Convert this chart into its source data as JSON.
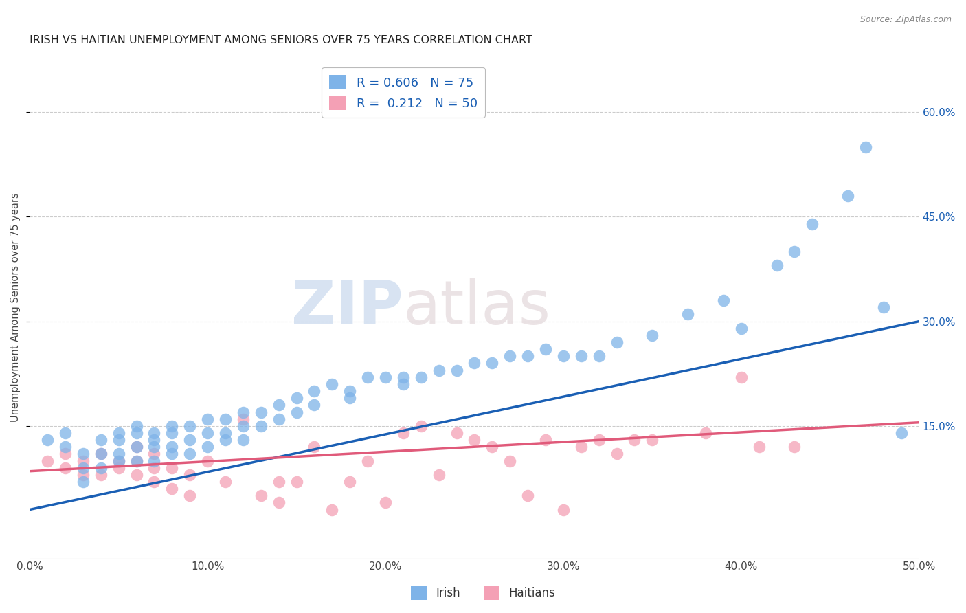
{
  "title": "IRISH VS HAITIAN UNEMPLOYMENT AMONG SENIORS OVER 75 YEARS CORRELATION CHART",
  "source": "Source: ZipAtlas.com",
  "ylabel": "Unemployment Among Seniors over 75 years",
  "xlim": [
    0.0,
    0.5
  ],
  "ylim": [
    -0.04,
    0.68
  ],
  "xticks": [
    0.0,
    0.1,
    0.2,
    0.3,
    0.4,
    0.5
  ],
  "yticks_right": [
    0.15,
    0.3,
    0.45,
    0.6
  ],
  "ytick_labels_right": [
    "15.0%",
    "30.0%",
    "45.0%",
    "60.0%"
  ],
  "xtick_labels": [
    "0.0%",
    "10.0%",
    "20.0%",
    "30.0%",
    "40.0%",
    "50.0%"
  ],
  "grid_color": "#cccccc",
  "background_color": "#ffffff",
  "watermark_zip": "ZIP",
  "watermark_atlas": "atlas",
  "irish_color": "#7eb3e8",
  "haitian_color": "#f4a0b5",
  "irish_line_color": "#1a5fb4",
  "haitian_line_color": "#e05a7a",
  "irish_R": 0.606,
  "irish_N": 75,
  "haitian_R": 0.212,
  "haitian_N": 50,
  "irish_line_x0": 0.0,
  "irish_line_y0": 0.03,
  "irish_line_x1": 0.5,
  "irish_line_y1": 0.3,
  "haitian_line_x0": 0.0,
  "haitian_line_y0": 0.085,
  "haitian_line_x1": 0.5,
  "haitian_line_y1": 0.155,
  "irish_x": [
    0.01,
    0.02,
    0.02,
    0.03,
    0.03,
    0.03,
    0.04,
    0.04,
    0.04,
    0.05,
    0.05,
    0.05,
    0.05,
    0.06,
    0.06,
    0.06,
    0.06,
    0.07,
    0.07,
    0.07,
    0.07,
    0.08,
    0.08,
    0.08,
    0.08,
    0.09,
    0.09,
    0.09,
    0.1,
    0.1,
    0.1,
    0.11,
    0.11,
    0.11,
    0.12,
    0.12,
    0.12,
    0.13,
    0.13,
    0.14,
    0.14,
    0.15,
    0.15,
    0.16,
    0.16,
    0.17,
    0.18,
    0.18,
    0.19,
    0.2,
    0.21,
    0.21,
    0.22,
    0.23,
    0.24,
    0.25,
    0.26,
    0.27,
    0.28,
    0.29,
    0.3,
    0.31,
    0.32,
    0.33,
    0.35,
    0.37,
    0.39,
    0.4,
    0.42,
    0.43,
    0.44,
    0.46,
    0.47,
    0.48,
    0.49
  ],
  "irish_y": [
    0.13,
    0.14,
    0.12,
    0.11,
    0.09,
    0.07,
    0.13,
    0.11,
    0.09,
    0.14,
    0.13,
    0.11,
    0.1,
    0.15,
    0.14,
    0.12,
    0.1,
    0.14,
    0.13,
    0.12,
    0.1,
    0.15,
    0.14,
    0.12,
    0.11,
    0.15,
    0.13,
    0.11,
    0.16,
    0.14,
    0.12,
    0.16,
    0.14,
    0.13,
    0.17,
    0.15,
    0.13,
    0.17,
    0.15,
    0.18,
    0.16,
    0.19,
    0.17,
    0.2,
    0.18,
    0.21,
    0.2,
    0.19,
    0.22,
    0.22,
    0.22,
    0.21,
    0.22,
    0.23,
    0.23,
    0.24,
    0.24,
    0.25,
    0.25,
    0.26,
    0.25,
    0.25,
    0.25,
    0.27,
    0.28,
    0.31,
    0.33,
    0.29,
    0.38,
    0.4,
    0.44,
    0.48,
    0.55,
    0.32,
    0.14
  ],
  "haitian_x": [
    0.01,
    0.02,
    0.02,
    0.03,
    0.03,
    0.04,
    0.04,
    0.05,
    0.05,
    0.06,
    0.06,
    0.06,
    0.07,
    0.07,
    0.07,
    0.08,
    0.08,
    0.09,
    0.09,
    0.1,
    0.11,
    0.12,
    0.13,
    0.14,
    0.14,
    0.15,
    0.16,
    0.17,
    0.18,
    0.19,
    0.2,
    0.21,
    0.22,
    0.23,
    0.24,
    0.25,
    0.26,
    0.27,
    0.28,
    0.29,
    0.3,
    0.31,
    0.32,
    0.33,
    0.34,
    0.35,
    0.38,
    0.4,
    0.41,
    0.43
  ],
  "haitian_y": [
    0.1,
    0.11,
    0.09,
    0.1,
    0.08,
    0.11,
    0.08,
    0.1,
    0.09,
    0.12,
    0.1,
    0.08,
    0.11,
    0.09,
    0.07,
    0.09,
    0.06,
    0.08,
    0.05,
    0.1,
    0.07,
    0.16,
    0.05,
    0.07,
    0.04,
    0.07,
    0.12,
    0.03,
    0.07,
    0.1,
    0.04,
    0.14,
    0.15,
    0.08,
    0.14,
    0.13,
    0.12,
    0.1,
    0.05,
    0.13,
    0.03,
    0.12,
    0.13,
    0.11,
    0.13,
    0.13,
    0.14,
    0.22,
    0.12,
    0.12
  ]
}
